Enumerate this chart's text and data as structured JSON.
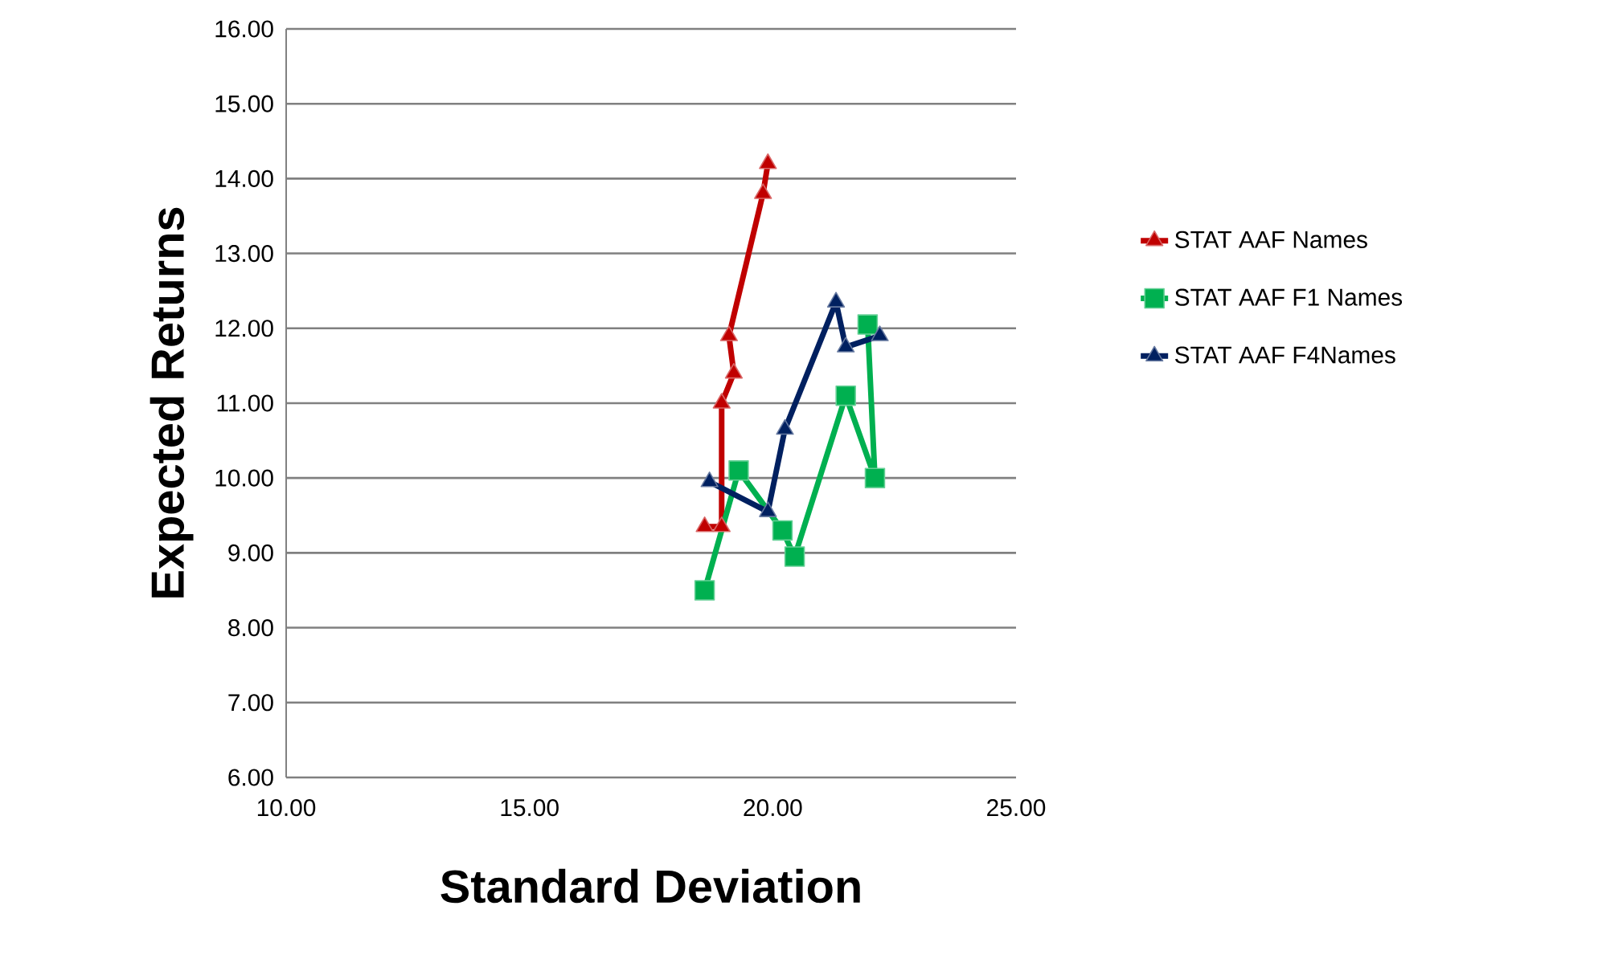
{
  "chart_data": {
    "type": "line",
    "xlabel": "Standard Deviation",
    "ylabel": "Expected Returns",
    "xlim": [
      10,
      25
    ],
    "xticks": [
      {
        "value": 10,
        "label": "10.00"
      },
      {
        "value": 15,
        "label": "15.00"
      },
      {
        "value": 20,
        "label": "20.00"
      },
      {
        "value": 25,
        "label": "25.00"
      }
    ],
    "ylim": [
      6,
      16
    ],
    "yticks": [
      {
        "value": 6,
        "label": "6.00"
      },
      {
        "value": 7,
        "label": "7.00"
      },
      {
        "value": 8,
        "label": "8.00"
      },
      {
        "value": 9,
        "label": "9.00"
      },
      {
        "value": 10,
        "label": "10.00"
      },
      {
        "value": 11,
        "label": "11.00"
      },
      {
        "value": 12,
        "label": "12.00"
      },
      {
        "value": 13,
        "label": "13.00"
      },
      {
        "value": 14,
        "label": "14.00"
      },
      {
        "value": 15,
        "label": "15.00"
      },
      {
        "value": 16,
        "label": "16.00"
      }
    ],
    "grid": "y",
    "legend": "right",
    "line_style": "solid",
    "series": [
      {
        "name": "STAT AAF Names",
        "color": "#c00000",
        "marker": "triangle",
        "x": [
          18.6,
          18.95,
          18.95,
          19.2,
          19.1,
          19.8,
          19.9
        ],
        "values": [
          9.35,
          9.35,
          11.0,
          11.4,
          11.9,
          13.8,
          14.2
        ]
      },
      {
        "name": "STAT AAF F1 Names",
        "color": "#00b050",
        "marker": "square",
        "x": [
          18.6,
          19.3,
          20.2,
          20.45,
          21.5,
          22.1,
          21.95
        ],
        "values": [
          8.5,
          10.1,
          9.3,
          8.95,
          11.1,
          10.0,
          12.05
        ]
      },
      {
        "name": "STAT AAF F4Names",
        "color": "#002060",
        "marker": "triangle",
        "x": [
          18.7,
          19.9,
          20.25,
          21.3,
          21.5,
          22.2
        ],
        "values": [
          9.95,
          9.55,
          10.65,
          12.35,
          11.75,
          11.9
        ]
      }
    ]
  }
}
